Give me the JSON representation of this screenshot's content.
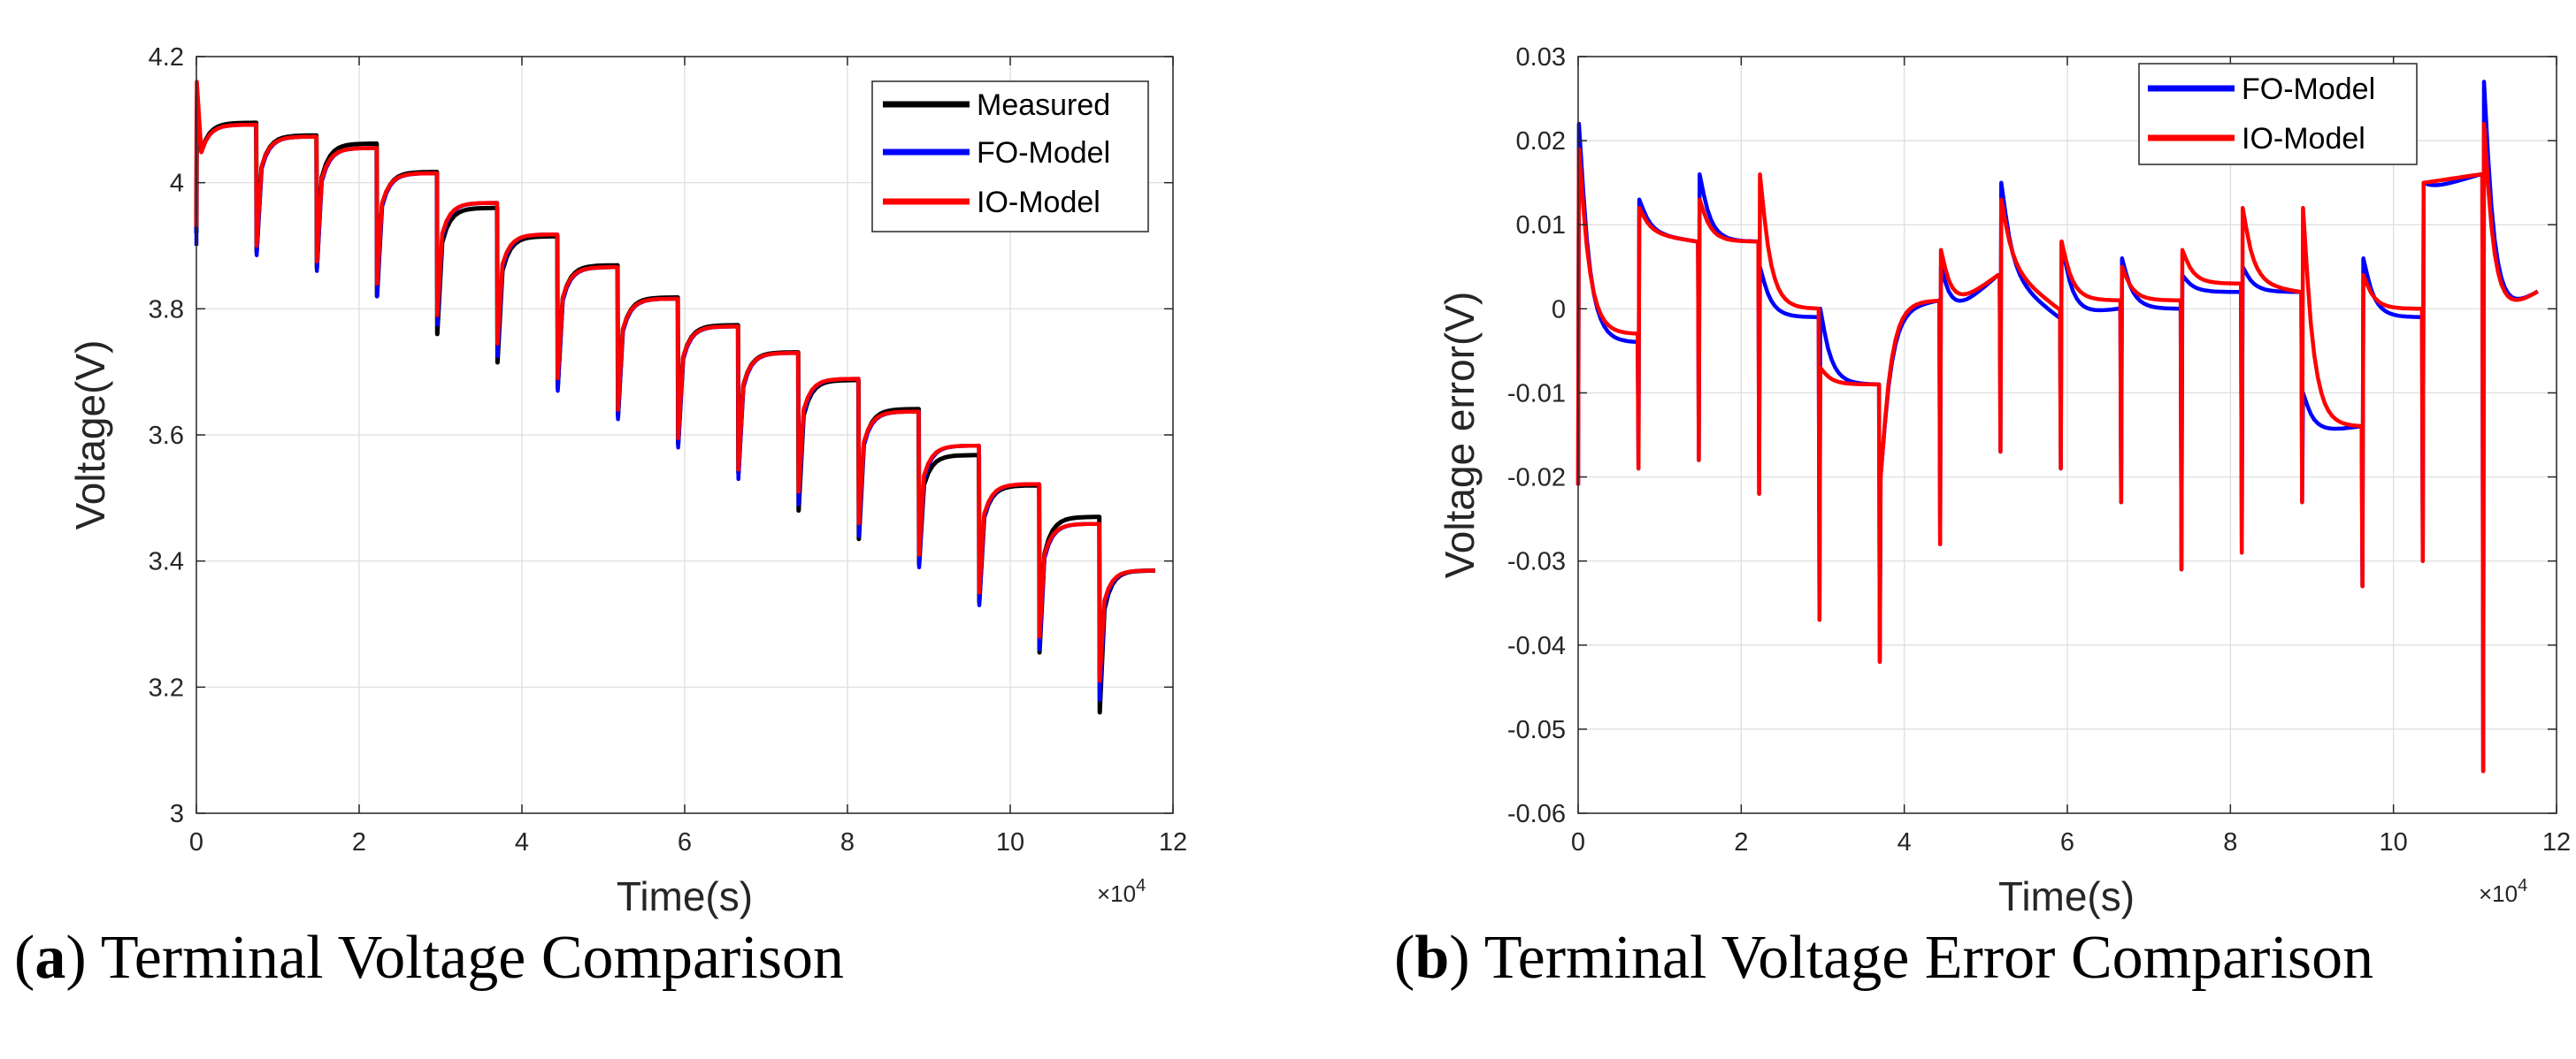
{
  "colors": {
    "measured": "#000000",
    "fo_model": "#0000ff",
    "io_model": "#ff0000",
    "grid": "#dcdcdc",
    "axis": "#262626"
  },
  "chart_data": [
    {
      "type": "line",
      "caption_letter": "a",
      "caption_text": "Terminal Voltage Comparison",
      "title": "",
      "xlabel": "Time(s)",
      "ylabel": "Voltage(V)",
      "x_exponent_label": "×10",
      "x_exponent_power": "4",
      "xlim": [
        0,
        12
      ],
      "ylim": [
        3.0,
        4.2
      ],
      "xticks": [
        0,
        2,
        4,
        6,
        8,
        10,
        12
      ],
      "xtick_labels": [
        "0",
        "2",
        "4",
        "6",
        "8",
        "10",
        "12"
      ],
      "yticks": [
        3.0,
        3.2,
        3.4,
        3.6,
        3.8,
        4.0,
        4.2
      ],
      "ytick_labels": [
        "3",
        "3.2",
        "3.4",
        "3.6",
        "3.8",
        "4",
        "4.2"
      ],
      "grid": true,
      "legend_position": "top-right",
      "series": [
        {
          "name": "Measured",
          "color_key": "measured"
        },
        {
          "name": "FO-Model",
          "color_key": "fo_model"
        },
        {
          "name": "IO-Model",
          "color_key": "io_model"
        }
      ],
      "pulse_times": [
        0.0,
        0.74,
        1.48,
        2.22,
        2.96,
        3.7,
        4.44,
        5.18,
        5.92,
        6.66,
        7.4,
        8.14,
        8.88,
        9.62,
        10.36,
        11.1
      ],
      "pulse_end": 11.8,
      "rest_levels": {
        "measured": [
          4.095,
          4.075,
          4.062,
          4.017,
          3.96,
          3.915,
          3.869,
          3.818,
          3.774,
          3.731,
          3.687,
          3.641,
          3.568,
          3.52,
          3.47,
          3.385
        ],
        "fo_model": [
          4.092,
          4.073,
          4.055,
          4.015,
          3.968,
          3.918,
          3.866,
          3.816,
          3.772,
          3.73,
          3.689,
          3.637,
          3.583,
          3.522,
          3.459,
          3.385
        ],
        "io_model": [
          4.092,
          4.073,
          4.055,
          4.015,
          3.968,
          3.918,
          3.866,
          3.816,
          3.772,
          3.73,
          3.689,
          3.637,
          3.583,
          3.522,
          3.459,
          3.385
        ]
      },
      "dip_levels": {
        "measured": [
          3.92,
          3.89,
          3.865,
          3.82,
          3.76,
          3.715,
          3.675,
          3.63,
          3.585,
          3.54,
          3.48,
          3.435,
          3.395,
          3.335,
          3.255,
          3.16
        ],
        "fo_model": [
          3.9,
          3.885,
          3.86,
          3.82,
          3.775,
          3.725,
          3.67,
          3.625,
          3.58,
          3.53,
          3.49,
          3.44,
          3.39,
          3.33,
          3.26,
          3.18
        ],
        "io_model": [
          3.93,
          3.9,
          3.875,
          3.84,
          3.79,
          3.745,
          3.69,
          3.64,
          3.595,
          3.545,
          3.51,
          3.46,
          3.41,
          3.35,
          3.28,
          3.21
        ]
      },
      "first_peak": {
        "io_model": 4.16,
        "fo_model": 4.14,
        "measured": 4.12
      }
    },
    {
      "type": "line",
      "caption_letter": "b",
      "caption_text": "Terminal Voltage Error Comparison",
      "title": "",
      "xlabel": "Time(s)",
      "ylabel": "Voltage error(V)",
      "x_exponent_label": "×10",
      "x_exponent_power": "4",
      "xlim": [
        0,
        12
      ],
      "ylim": [
        -0.06,
        0.03
      ],
      "xticks": [
        0,
        2,
        4,
        6,
        8,
        10,
        12
      ],
      "xtick_labels": [
        "0",
        "2",
        "4",
        "6",
        "8",
        "10",
        "12"
      ],
      "yticks": [
        -0.06,
        -0.05,
        -0.04,
        -0.03,
        -0.02,
        -0.01,
        0,
        0.01,
        0.02,
        0.03
      ],
      "ytick_labels": [
        "-0.06",
        "-0.05",
        "-0.04",
        "-0.03",
        "-0.02",
        "-0.01",
        "0",
        "0.01",
        "0.02",
        "0.03"
      ],
      "grid": true,
      "legend_position": "top-right",
      "series": [
        {
          "name": "FO-Model",
          "color_key": "fo_model"
        },
        {
          "name": "IO-Model",
          "color_key": "io_model"
        }
      ],
      "pulse_times": [
        0.0,
        0.74,
        1.48,
        2.22,
        2.96,
        3.7,
        4.44,
        5.18,
        5.92,
        6.66,
        7.4,
        8.14,
        8.88,
        9.62,
        10.36,
        11.1
      ],
      "pulse_end": 11.8,
      "segments": {
        "fo_model": {
          "peak": [
            0.022,
            0.013,
            0.016,
            0.005,
            -0.0,
            -0.02,
            0.005,
            0.015,
            0.008,
            0.006,
            0.004,
            0.005,
            -0.01,
            0.006,
            0.015,
            0.027
          ],
          "rest": [
            -0.004,
            0.009,
            0.008,
            -0.001,
            -0.009,
            0.0,
            -0.002,
            0.004,
            -0.001,
            0.0,
            0.002,
            0.002,
            -0.015,
            -0.001,
            0.014,
            -0.002
          ],
          "end": [
            -0.004,
            0.008,
            0.008,
            -0.001,
            -0.009,
            0.001,
            0.004,
            -0.001,
            0.0,
            0.0,
            0.002,
            0.002,
            -0.014,
            -0.001,
            0.016,
            0.002
          ],
          "spike": [
            -0.021,
            -0.019,
            -0.018,
            -0.022,
            -0.037,
            -0.042,
            -0.028,
            -0.017,
            -0.019,
            -0.023,
            -0.031,
            -0.029,
            -0.023,
            -0.033,
            -0.03,
            -0.055
          ]
        },
        "io_model": {
          "peak": [
            0.019,
            0.012,
            0.013,
            0.016,
            -0.007,
            -0.02,
            0.007,
            0.013,
            0.008,
            0.005,
            0.007,
            0.012,
            0.012,
            0.004,
            0.015,
            0.022
          ],
          "rest": [
            -0.003,
            0.009,
            0.008,
            0.0,
            -0.009,
            0.001,
            -0.001,
            0.005,
            0.001,
            0.001,
            0.003,
            0.003,
            -0.014,
            0.0,
            0.015,
            -0.002
          ],
          "end": [
            -0.003,
            0.008,
            0.008,
            0.0,
            -0.009,
            0.001,
            0.004,
            0.0,
            0.001,
            0.001,
            0.003,
            0.002,
            -0.014,
            0.0,
            0.016,
            0.002
          ],
          "spike": [
            -0.021,
            -0.019,
            -0.018,
            -0.022,
            -0.037,
            -0.042,
            -0.028,
            -0.017,
            -0.019,
            -0.023,
            -0.031,
            -0.029,
            -0.023,
            -0.033,
            -0.03,
            -0.055
          ]
        }
      }
    }
  ]
}
